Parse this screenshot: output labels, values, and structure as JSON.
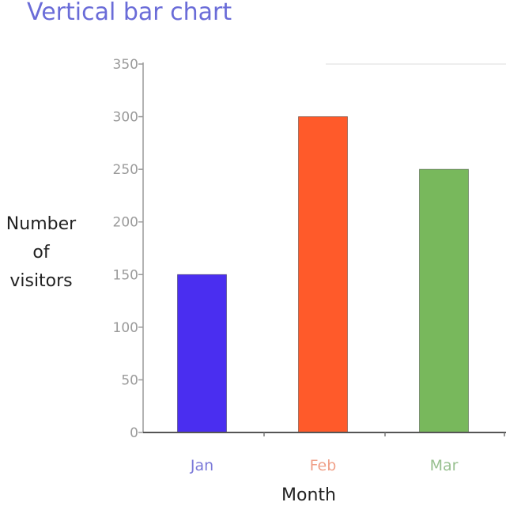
{
  "chart_data": {
    "type": "bar",
    "title": "Vertical bar chart",
    "xlabel": "Month",
    "ylabel_lines": [
      "Number",
      "of",
      "visitors"
    ],
    "categories": [
      "Jan",
      "Feb",
      "Mar"
    ],
    "values": [
      150,
      300,
      250
    ],
    "colors": [
      "#4a2ef0",
      "#ff5a2a",
      "#78b85c"
    ],
    "label_colors": [
      "#7a78d8",
      "#f0a088",
      "#98c090"
    ],
    "ylim": [
      0,
      350
    ],
    "yticks": [
      0,
      50,
      100,
      150,
      200,
      250,
      300,
      350
    ],
    "grid": false
  }
}
